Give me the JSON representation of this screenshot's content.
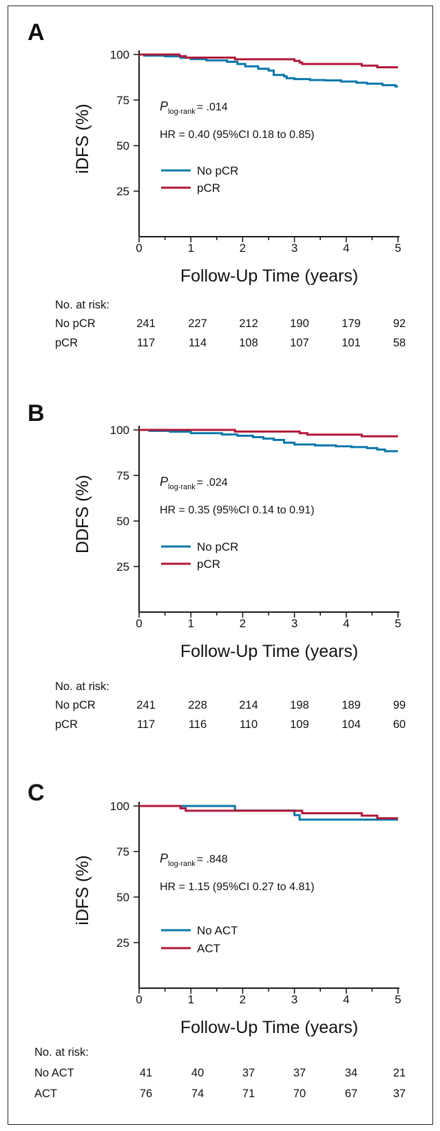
{
  "colors": {
    "series_a": "#0a78aa",
    "series_b": "#b0183a",
    "axis": "#1a1a1a"
  },
  "chart_data": [
    {
      "type": "line",
      "step": true,
      "panel": "A",
      "title": "",
      "xlabel": "Follow-Up Time (years)",
      "ylabel": "iDFS (%)",
      "xlim": [
        0,
        5
      ],
      "ylim": [
        0,
        100
      ],
      "xticks": [
        "0",
        "1",
        "2",
        "3",
        "4",
        "5"
      ],
      "yticks": [
        "100",
        "75",
        "50",
        "25"
      ],
      "grid": false,
      "annotation": {
        "p_prefix": "P",
        "p_sub": "log-rank",
        "p_value": "= .014",
        "hr": "HR = 0.40 (95%CI 0.18 to 0.85)"
      },
      "legend_position": "center-left",
      "series": [
        {
          "name": "No pCR",
          "color_key": "series_a",
          "x": [
            0,
            0.1,
            0.5,
            0.8,
            1.0,
            1.3,
            1.7,
            1.9,
            2.05,
            2.3,
            2.5,
            2.6,
            2.8,
            2.85,
            3.0,
            3.3,
            3.6,
            3.9,
            4.2,
            4.4,
            4.7,
            4.95,
            5.0
          ],
          "y": [
            100,
            99.4,
            99.0,
            98.2,
            97.5,
            96.8,
            96.0,
            94.8,
            93.5,
            92.2,
            91.2,
            88.8,
            88.0,
            87.0,
            86.5,
            86.0,
            85.8,
            85.2,
            84.5,
            84.0,
            83.2,
            82.5,
            82.5
          ]
        },
        {
          "name": "pCR",
          "color_key": "series_b",
          "x": [
            0,
            0.78,
            0.9,
            1.0,
            1.85,
            3.0,
            3.1,
            3.15,
            4.3,
            4.6,
            5.0
          ],
          "y": [
            100,
            99.1,
            98.3,
            98.3,
            97.4,
            96.5,
            95.6,
            94.8,
            93.9,
            93.0,
            93.0
          ]
        }
      ],
      "risk_table": {
        "header": "No. at risk:",
        "rows": [
          {
            "label": "No pCR",
            "values": [
              "241",
              "227",
              "212",
              "190",
              "179",
              "92"
            ]
          },
          {
            "label": "pCR",
            "values": [
              "117",
              "114",
              "108",
              "107",
              "101",
              "58"
            ]
          }
        ]
      }
    },
    {
      "type": "line",
      "step": true,
      "panel": "B",
      "title": "",
      "xlabel": "Follow-Up Time (years)",
      "ylabel": "DDFS (%)",
      "xlim": [
        0,
        5
      ],
      "ylim": [
        0,
        100
      ],
      "xticks": [
        "0",
        "1",
        "2",
        "3",
        "4",
        "5"
      ],
      "yticks": [
        "100",
        "75",
        "50",
        "25"
      ],
      "grid": false,
      "annotation": {
        "p_prefix": "P",
        "p_sub": "log-rank",
        "p_value": "= .024",
        "hr": "HR = 0.35 (95%CI 0.14 to 0.91)"
      },
      "legend_position": "center-left",
      "series": [
        {
          "name": "No pCR",
          "color_key": "series_a",
          "x": [
            0,
            0.2,
            0.6,
            1.0,
            1.6,
            1.9,
            2.2,
            2.4,
            2.6,
            2.8,
            3.0,
            3.4,
            3.8,
            4.1,
            4.4,
            4.6,
            4.75,
            5.0
          ],
          "y": [
            100,
            99.5,
            99.0,
            98.2,
            97.5,
            96.8,
            96.0,
            95.2,
            94.5,
            93.0,
            92.0,
            91.5,
            91.0,
            90.6,
            90.0,
            89.2,
            88.3,
            88.3
          ]
        },
        {
          "name": "pCR",
          "color_key": "series_b",
          "x": [
            0,
            1.85,
            3.1,
            3.25,
            4.3,
            5.0
          ],
          "y": [
            100,
            99.1,
            98.2,
            97.4,
            96.5,
            96.5
          ]
        }
      ],
      "risk_table": {
        "header": "No. at risk:",
        "rows": [
          {
            "label": "No pCR",
            "values": [
              "241",
              "228",
              "214",
              "198",
              "189",
              "99"
            ]
          },
          {
            "label": "pCR",
            "values": [
              "117",
              "116",
              "110",
              "109",
              "104",
              "60"
            ]
          }
        ]
      }
    },
    {
      "type": "line",
      "step": true,
      "panel": "C",
      "title": "",
      "xlabel": "Follow-Up Time (years)",
      "ylabel": "iDFS (%)",
      "xlim": [
        0,
        5
      ],
      "ylim": [
        0,
        100
      ],
      "xticks": [
        "0",
        "1",
        "2",
        "3",
        "4",
        "5"
      ],
      "yticks": [
        "100",
        "75",
        "50",
        "25"
      ],
      "grid": false,
      "annotation": {
        "p_prefix": "P",
        "p_sub": "log-rank",
        "p_value": "= .848",
        "hr": "HR = 1.15 (95%CI 0.27 to 4.81)"
      },
      "legend_position": "lower-left",
      "series": [
        {
          "name": "No ACT",
          "color_key": "series_a",
          "x": [
            0,
            1.85,
            3.0,
            3.1,
            5.0
          ],
          "y": [
            100,
            97.5,
            95.0,
            92.5,
            92.5
          ]
        },
        {
          "name": "ACT",
          "color_key": "series_b",
          "x": [
            0,
            0.8,
            0.9,
            3.0,
            3.15,
            4.3,
            4.6,
            5.0
          ],
          "y": [
            100,
            98.7,
            97.4,
            97.4,
            96.0,
            94.7,
            93.3,
            93.3
          ]
        }
      ],
      "risk_table": {
        "header": "No. at risk:",
        "rows": [
          {
            "label": "No ACT",
            "values": [
              "41",
              "40",
              "37",
              "37",
              "34",
              "21"
            ]
          },
          {
            "label": "ACT",
            "values": [
              "76",
              "74",
              "71",
              "70",
              "67",
              "37"
            ]
          }
        ]
      }
    }
  ]
}
